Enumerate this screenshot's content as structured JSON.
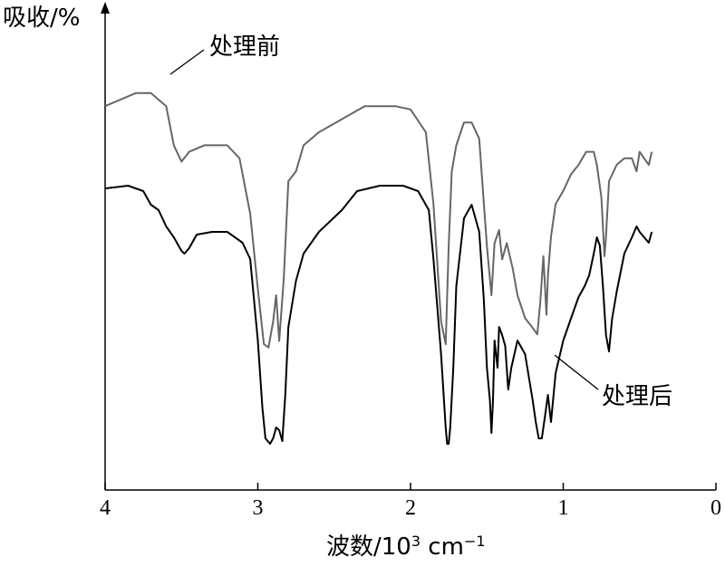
{
  "chart_data": {
    "type": "line",
    "ylabel": "吸收/%",
    "xlabel": "波数/10",
    "xlabel_sup": "3",
    "xlabel_unit": " cm",
    "xlabel_unit_sup": "−1",
    "xlim": [
      4,
      0
    ],
    "x_ticks": [
      "4",
      "3",
      "2",
      "1",
      "0"
    ],
    "x_tick_values": [
      4,
      3,
      2,
      1,
      0
    ],
    "grid": false,
    "legend": "none",
    "y_scale": "relative absorbance (no tick labels)",
    "series": [
      {
        "name": "处理前",
        "color": "#666666",
        "x": [
          4.0,
          3.8,
          3.7,
          3.6,
          3.55,
          3.5,
          3.45,
          3.35,
          3.2,
          3.12,
          3.05,
          3.0,
          2.96,
          2.93,
          2.9,
          2.88,
          2.86,
          2.83,
          2.8,
          2.75,
          2.7,
          2.6,
          2.45,
          2.3,
          2.1,
          2.0,
          1.9,
          1.85,
          1.8,
          1.77,
          1.75,
          1.73,
          1.7,
          1.65,
          1.6,
          1.55,
          1.5,
          1.47,
          1.45,
          1.42,
          1.4,
          1.37,
          1.33,
          1.3,
          1.25,
          1.2,
          1.17,
          1.15,
          1.13,
          1.11,
          1.1,
          1.08,
          1.05,
          1.0,
          0.95,
          0.9,
          0.85,
          0.8,
          0.78,
          0.75,
          0.73,
          0.72,
          0.7,
          0.65,
          0.6,
          0.55,
          0.52,
          0.5,
          0.47,
          0.44,
          0.42
        ],
        "y": [
          0.78,
          0.82,
          0.82,
          0.78,
          0.66,
          0.61,
          0.64,
          0.66,
          0.66,
          0.62,
          0.45,
          0.22,
          0.05,
          0.04,
          0.12,
          0.2,
          0.06,
          0.25,
          0.55,
          0.58,
          0.66,
          0.7,
          0.74,
          0.78,
          0.78,
          0.77,
          0.7,
          0.48,
          0.12,
          0.05,
          0.35,
          0.58,
          0.66,
          0.73,
          0.73,
          0.68,
          0.35,
          0.2,
          0.36,
          0.4,
          0.31,
          0.36,
          0.28,
          0.2,
          0.13,
          0.1,
          0.08,
          0.18,
          0.32,
          0.14,
          0.26,
          0.38,
          0.48,
          0.52,
          0.57,
          0.6,
          0.64,
          0.64,
          0.6,
          0.5,
          0.32,
          0.38,
          0.55,
          0.6,
          0.62,
          0.62,
          0.58,
          0.64,
          0.62,
          0.6,
          0.64
        ]
      },
      {
        "name": "处理后",
        "color": "#000000",
        "x": [
          4.0,
          3.85,
          3.75,
          3.7,
          3.65,
          3.6,
          3.55,
          3.5,
          3.48,
          3.45,
          3.4,
          3.3,
          3.2,
          3.1,
          3.05,
          3.0,
          2.97,
          2.95,
          2.92,
          2.9,
          2.88,
          2.86,
          2.84,
          2.82,
          2.8,
          2.75,
          2.7,
          2.6,
          2.45,
          2.35,
          2.2,
          2.05,
          1.95,
          1.88,
          1.85,
          1.8,
          1.77,
          1.76,
          1.75,
          1.74,
          1.72,
          1.7,
          1.65,
          1.6,
          1.55,
          1.52,
          1.5,
          1.48,
          1.47,
          1.46,
          1.45,
          1.43,
          1.42,
          1.4,
          1.38,
          1.36,
          1.34,
          1.3,
          1.25,
          1.2,
          1.18,
          1.16,
          1.14,
          1.12,
          1.1,
          1.08,
          1.05,
          1.0,
          0.95,
          0.9,
          0.86,
          0.83,
          0.8,
          0.78,
          0.76,
          0.74,
          0.72,
          0.7,
          0.68,
          0.65,
          0.6,
          0.55,
          0.52,
          0.5,
          0.47,
          0.44,
          0.42
        ],
        "y": [
          0.96,
          0.97,
          0.95,
          0.9,
          0.88,
          0.82,
          0.78,
          0.73,
          0.72,
          0.74,
          0.79,
          0.8,
          0.8,
          0.76,
          0.7,
          0.4,
          0.15,
          0.04,
          0.02,
          0.04,
          0.08,
          0.07,
          0.03,
          0.2,
          0.45,
          0.62,
          0.72,
          0.8,
          0.88,
          0.95,
          0.97,
          0.97,
          0.95,
          0.88,
          0.7,
          0.35,
          0.08,
          0.02,
          0.02,
          0.08,
          0.3,
          0.6,
          0.85,
          0.9,
          0.8,
          0.55,
          0.3,
          0.18,
          0.06,
          0.18,
          0.4,
          0.3,
          0.45,
          0.42,
          0.38,
          0.22,
          0.3,
          0.4,
          0.35,
          0.18,
          0.1,
          0.04,
          0.04,
          0.12,
          0.2,
          0.1,
          0.28,
          0.4,
          0.48,
          0.56,
          0.6,
          0.64,
          0.72,
          0.78,
          0.75,
          0.6,
          0.42,
          0.36,
          0.48,
          0.58,
          0.72,
          0.78,
          0.82,
          0.8,
          0.78,
          0.76,
          0.8
        ]
      }
    ],
    "annotations": [
      "处理前",
      "处理后"
    ]
  }
}
